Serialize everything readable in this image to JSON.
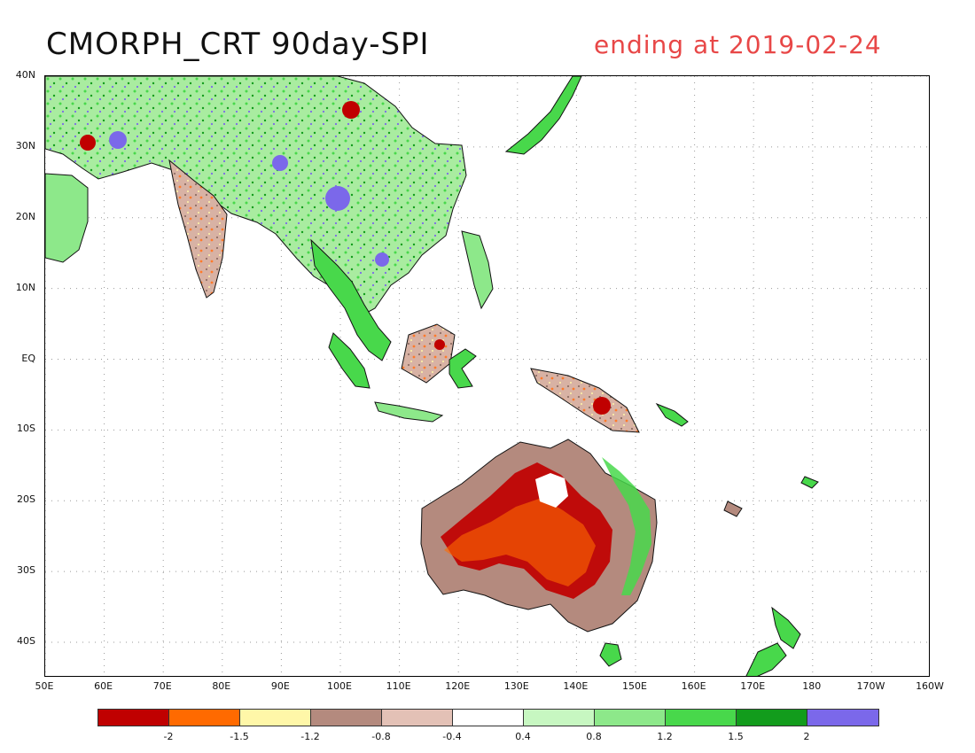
{
  "header": {
    "title": "CMORPH_CRT 90day-SPI",
    "subtitle": "ending at 2019-02-24"
  },
  "map": {
    "lat_labels": [
      "40N",
      "30N",
      "20N",
      "10N",
      "EQ",
      "10S",
      "20S",
      "30S",
      "40S"
    ],
    "lon_labels": [
      "50E",
      "60E",
      "70E",
      "80E",
      "90E",
      "100E",
      "110E",
      "120E",
      "130E",
      "140E",
      "150E",
      "160E",
      "170E",
      "180",
      "170W",
      "160W"
    ],
    "lat_range": [
      -45,
      40
    ],
    "lon_range": [
      50,
      200
    ],
    "gridlines": true,
    "gridline_style": "dotted"
  },
  "colorbar": {
    "colors": [
      "#c00000",
      "#ff6a00",
      "#fff7a8",
      "#b48a7e",
      "#e3c1b6",
      "#ffffff",
      "#c7f7c1",
      "#8de88a",
      "#48d84b",
      "#129c1c",
      "#7b68ea"
    ],
    "labels": [
      "-2",
      "-1.5",
      "-1.2",
      "-0.8",
      "-0.4",
      "0.4",
      "0.8",
      "1.2",
      "1.5",
      "2"
    ]
  },
  "colors": {
    "title": "#111111",
    "subtitle": "#e84747",
    "coastline": "#111111",
    "grid": "#999999"
  }
}
